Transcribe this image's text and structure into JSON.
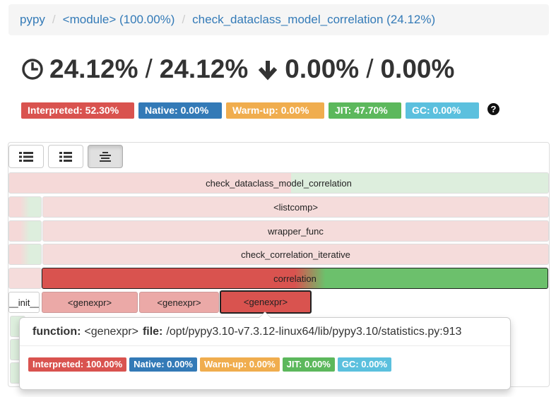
{
  "breadcrumb": {
    "items": [
      {
        "label": "pypy"
      },
      {
        "label": "<module> (100.00%)"
      },
      {
        "label": "check_dataclass_model_correlation (24.12%)"
      }
    ],
    "separator": "/"
  },
  "headline": {
    "total_time": "24.12%",
    "slash": "/",
    "self_time_total": "24.12%",
    "own_time": "0.00%",
    "own_time_total": "0.00%",
    "clock_icon": "clock-icon",
    "arrow_icon": "arrow-down-icon"
  },
  "badges": {
    "interpreted": "Interpreted: 52.30%",
    "native": "Native: 0.00%",
    "warmup": "Warm-up: 0.00%",
    "jit": "JIT: 47.70%",
    "gc": "GC: 0.00%",
    "help": "?"
  },
  "colors": {
    "interpreted": "#d9534f",
    "native": "#337ab7",
    "warmup": "#f0ad4e",
    "jit": "#5cb85c",
    "gc": "#5bc0de"
  },
  "toolbar": {
    "buttons": [
      {
        "icon": "list-icon",
        "active": false
      },
      {
        "icon": "list-alt-icon",
        "active": false
      },
      {
        "icon": "align-center-icon",
        "active": true
      }
    ]
  },
  "flamegraph": {
    "frames": [
      {
        "name": "check_dataclass_model_correlation",
        "interpreted": 52.3
      },
      {
        "name": "<listcomp>"
      },
      {
        "name": "wrapper_func"
      },
      {
        "name": "check_correlation_iterative"
      },
      {
        "name": "correlation",
        "interpreted": 52.3
      },
      {
        "name": "__init__"
      },
      {
        "name": "<genexpr>"
      },
      {
        "name": "<genexpr>"
      },
      {
        "name": "<genexpr>"
      }
    ]
  },
  "tooltip": {
    "function_label": "function:",
    "function_value": "<genexpr>",
    "file_label": "file:",
    "file_value": "/opt/pypy3.10-v7.3.12-linux64/lib/pypy3.10/statistics.py:913",
    "badges": {
      "interpreted": "Interpreted: 100.00%",
      "native": "Native: 0.00%",
      "warmup": "Warm-up: 0.00%",
      "jit": "JIT: 0.00%",
      "gc": "GC: 0.00%"
    }
  }
}
